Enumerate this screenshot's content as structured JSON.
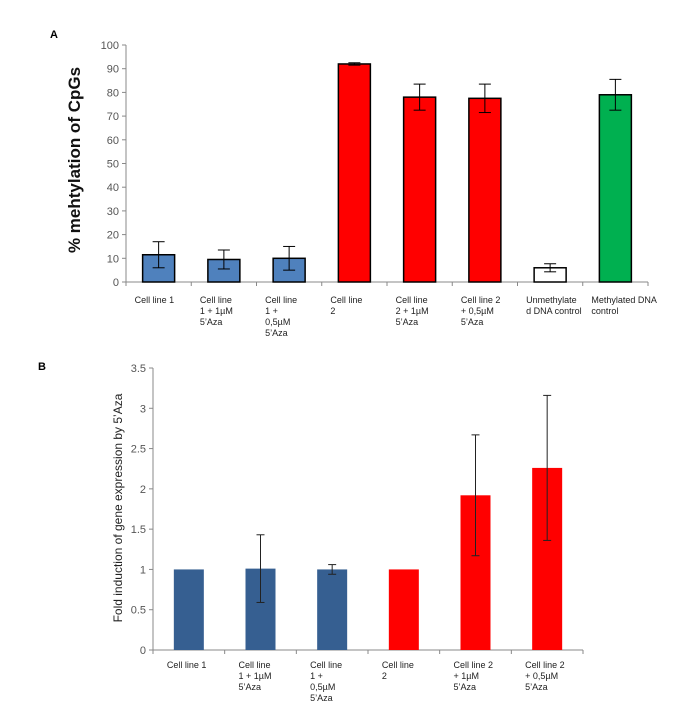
{
  "chart_data": [
    {
      "type": "bar",
      "panel_label": "A",
      "title": "",
      "xlabel": "",
      "ylabel": "% mehtylation of CpGs",
      "ylim": [
        0,
        100
      ],
      "yticks": [
        0,
        10,
        20,
        30,
        40,
        50,
        60,
        70,
        80,
        90,
        100
      ],
      "grid": false,
      "legend": "none",
      "error_bars": true,
      "categories": [
        [
          "Cell line 1"
        ],
        [
          "Cell line",
          "1 + 1µM",
          "5’Aza"
        ],
        [
          "Cell line",
          "1 +",
          "0,5µM",
          "5’Aza"
        ],
        [
          "Cell line",
          "2"
        ],
        [
          "Cell line",
          "2 + 1µM",
          "5’Aza"
        ],
        [
          "Cell line 2",
          "+ 0,5µM",
          "5’Aza"
        ],
        [
          "Unmethylate",
          "d DNA control"
        ],
        [
          "Methylated DNA",
          "control"
        ]
      ],
      "values": [
        11.5,
        9.5,
        10,
        92,
        78,
        77.5,
        6,
        79
      ],
      "errors": [
        5.5,
        4,
        5,
        0.5,
        5.5,
        6,
        1.7,
        6.5
      ],
      "colors": [
        "#4f81bd",
        "#4f81bd",
        "#4f81bd",
        "#ff0000",
        "#ff0000",
        "#ff0000",
        "#ffffff",
        "#00b050"
      ]
    },
    {
      "type": "bar",
      "panel_label": "B",
      "title": "",
      "xlabel": "",
      "ylabel": "Fold induction of gene expression by 5’Aza",
      "ylim": [
        0,
        3.5
      ],
      "yticks": [
        "0",
        "0.5",
        "1",
        "1.5",
        "2",
        "2.5",
        "3",
        "3.5"
      ],
      "grid": false,
      "legend": "none",
      "error_bars": true,
      "categories": [
        [
          "Cell line 1"
        ],
        [
          "Cell line",
          "1 + 1µM",
          "5’Aza"
        ],
        [
          "Cell line",
          "1 +",
          "0,5µM",
          "5’Aza"
        ],
        [
          "Cell line",
          "2"
        ],
        [
          "Cell line 2",
          "+ 1µM",
          "5’Aza"
        ],
        [
          "Cell line 2",
          "+ 0,5µM",
          "5’Aza"
        ]
      ],
      "values": [
        1,
        1.01,
        1,
        1,
        1.92,
        2.26
      ],
      "errors": [
        0,
        0.42,
        0.06,
        0,
        0.75,
        0.9
      ],
      "colors": [
        "#365f91",
        "#365f91",
        "#365f91",
        "#ff0000",
        "#ff0000",
        "#ff0000"
      ]
    }
  ]
}
